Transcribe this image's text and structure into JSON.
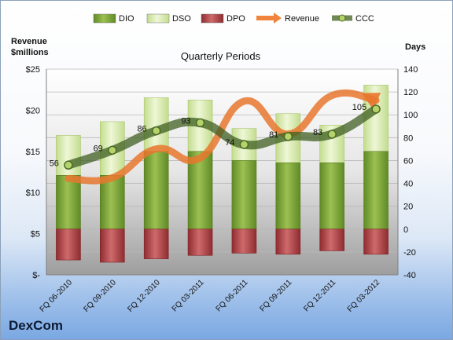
{
  "company": "DexCom",
  "chart_data": {
    "type": "bar",
    "subtitle": "Quarterly Periods",
    "ylabel_left": "Revenue\n$millions",
    "ylabel_right": "Days",
    "categories": [
      "FQ 06-2010",
      "FQ 09-2010",
      "FQ 12-2010",
      "FQ 03-2011",
      "FQ 06-2011",
      "FQ 09-2011",
      "FQ 12-2011",
      "FQ 03-2012"
    ],
    "left_axis": {
      "ylim": [
        0,
        25
      ],
      "ticks": [
        0,
        5,
        10,
        15,
        20,
        25
      ],
      "tick_labels": [
        "$-",
        "$5",
        "$10",
        "$15",
        "$20",
        "$25"
      ]
    },
    "right_axis": {
      "ylim": [
        -40,
        140
      ],
      "ticks": [
        -40,
        -20,
        0,
        20,
        40,
        60,
        80,
        100,
        120,
        140
      ]
    },
    "legend": {
      "position": "top",
      "items": [
        {
          "name": "DIO",
          "color": "#7ea33a"
        },
        {
          "name": "DSO",
          "color": "#d3e7a8"
        },
        {
          "name": "DPO",
          "color": "#b5474b"
        },
        {
          "name": "Revenue",
          "color": "#f0843c"
        },
        {
          "name": "CCC",
          "color": "#4c6c2c"
        }
      ]
    },
    "series": [
      {
        "name": "DIO",
        "axis": "right",
        "values": [
          47,
          47,
          68,
          68,
          60,
          58,
          58,
          68
        ]
      },
      {
        "name": "DSO",
        "axis": "right",
        "values": [
          35,
          47,
          47,
          45,
          28,
          43,
          33,
          58
        ]
      },
      {
        "name": "DPO",
        "axis": "right",
        "values": [
          -27,
          -29,
          -26,
          -23,
          -21,
          -22,
          -19,
          -22
        ]
      },
      {
        "name": "Revenue",
        "axis": "left",
        "values": [
          11.7,
          11.8,
          15.3,
          14.2,
          21.1,
          17.1,
          21.8,
          21.2
        ]
      },
      {
        "name": "CCC",
        "axis": "right",
        "values": [
          56,
          69,
          86,
          93,
          74,
          81,
          83,
          105
        ],
        "labels": [
          "56",
          "69",
          "86",
          "93",
          "74",
          "81",
          "83",
          "105"
        ]
      }
    ],
    "grid": true
  }
}
